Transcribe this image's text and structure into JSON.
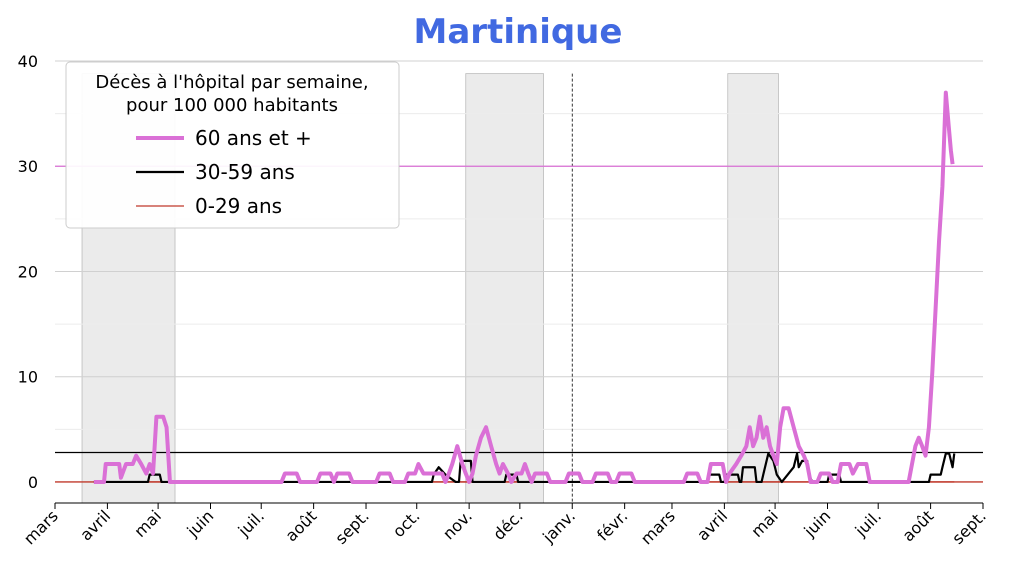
{
  "chart_data": {
    "type": "line",
    "title": "Martinique",
    "title_color": "#4169E1",
    "ylim": [
      -2,
      40
    ],
    "yticks": [
      0,
      10,
      20,
      30,
      40
    ],
    "grid": true,
    "x_months": [
      "mars",
      "avril",
      "mai",
      "juin",
      "juil.",
      "août",
      "sept.",
      "oct.",
      "nov.",
      "déc.",
      "janv.",
      "févr.",
      "mars",
      "avril",
      "mai",
      "juin",
      "juil.",
      "août",
      "sept."
    ],
    "x_range": [
      "2020-03-01",
      "2021-09-01"
    ],
    "year_boundary": "2021-01-01",
    "lockdowns": [
      [
        "2020-03-17",
        "2020-05-11"
      ],
      [
        "2020-10-30",
        "2020-12-15"
      ],
      [
        "2021-04-03",
        "2021-05-03"
      ]
    ],
    "reference_lines": [
      {
        "value": 30,
        "color": "#DA70D6"
      },
      {
        "value": 2.8,
        "color": "#000000"
      },
      {
        "value": 0,
        "color": "#c0392b"
      }
    ],
    "legend": {
      "title_line1": "Décès à l'hôpital par semaine,",
      "title_line2": "pour 100 000 habitants",
      "placement": "top-left"
    },
    "series": [
      {
        "name": "60 ans et +",
        "color": "#DA70D6",
        "points": [
          [
            "2020-03-24",
            0
          ],
          [
            "2020-03-30",
            0
          ],
          [
            "2020-03-31",
            1.7
          ],
          [
            "2020-04-08",
            1.7
          ],
          [
            "2020-04-09",
            0.4
          ],
          [
            "2020-04-12",
            1.7
          ],
          [
            "2020-04-16",
            1.7
          ],
          [
            "2020-04-18",
            2.5
          ],
          [
            "2020-04-21",
            1.7
          ],
          [
            "2020-04-24",
            0.8
          ],
          [
            "2020-04-26",
            1.7
          ],
          [
            "2020-04-28",
            0.8
          ],
          [
            "2020-04-30",
            6.2
          ],
          [
            "2020-05-04",
            6.2
          ],
          [
            "2020-05-06",
            5.2
          ],
          [
            "2020-05-08",
            0
          ],
          [
            "2020-07-13",
            0
          ],
          [
            "2020-07-15",
            0.8
          ],
          [
            "2020-07-22",
            0.8
          ],
          [
            "2020-07-24",
            0
          ],
          [
            "2020-08-03",
            0
          ],
          [
            "2020-08-05",
            0.8
          ],
          [
            "2020-08-11",
            0.8
          ],
          [
            "2020-08-13",
            0
          ],
          [
            "2020-08-15",
            0.8
          ],
          [
            "2020-08-22",
            0.8
          ],
          [
            "2020-08-24",
            0
          ],
          [
            "2020-09-07",
            0
          ],
          [
            "2020-09-09",
            0.8
          ],
          [
            "2020-09-15",
            0.8
          ],
          [
            "2020-09-17",
            0
          ],
          [
            "2020-09-24",
            0
          ],
          [
            "2020-09-26",
            0.8
          ],
          [
            "2020-09-30",
            0.8
          ],
          [
            "2020-10-02",
            1.7
          ],
          [
            "2020-10-05",
            0.8
          ],
          [
            "2020-10-16",
            0.8
          ],
          [
            "2020-10-18",
            0
          ],
          [
            "2020-10-20",
            0.8
          ],
          [
            "2020-10-22",
            1.7
          ],
          [
            "2020-10-25",
            3.4
          ],
          [
            "2020-10-28",
            1.7
          ],
          [
            "2020-10-30",
            0.8
          ],
          [
            "2020-11-01",
            0
          ],
          [
            "2020-11-03",
            0.8
          ],
          [
            "2020-11-05",
            2.5
          ],
          [
            "2020-11-08",
            4.2
          ],
          [
            "2020-11-11",
            5.2
          ],
          [
            "2020-11-14",
            3.4
          ],
          [
            "2020-11-17",
            1.7
          ],
          [
            "2020-11-19",
            0.8
          ],
          [
            "2020-11-21",
            1.7
          ],
          [
            "2020-11-24",
            0.8
          ],
          [
            "2020-11-26",
            0
          ],
          [
            "2020-11-29",
            0.8
          ],
          [
            "2020-12-02",
            0.8
          ],
          [
            "2020-12-04",
            1.7
          ],
          [
            "2020-12-06",
            0.8
          ],
          [
            "2020-12-08",
            0
          ],
          [
            "2020-12-10",
            0.8
          ],
          [
            "2020-12-17",
            0.8
          ],
          [
            "2020-12-19",
            0
          ],
          [
            "2020-12-28",
            0
          ],
          [
            "2020-12-30",
            0.8
          ],
          [
            "2021-01-05",
            0.8
          ],
          [
            "2021-01-07",
            0
          ],
          [
            "2021-01-13",
            0
          ],
          [
            "2021-01-15",
            0.8
          ],
          [
            "2021-01-22",
            0.8
          ],
          [
            "2021-01-24",
            0
          ],
          [
            "2021-01-27",
            0
          ],
          [
            "2021-01-29",
            0.8
          ],
          [
            "2021-02-05",
            0.8
          ],
          [
            "2021-02-07",
            0
          ],
          [
            "2021-03-08",
            0
          ],
          [
            "2021-03-10",
            0.8
          ],
          [
            "2021-03-16",
            0.8
          ],
          [
            "2021-03-18",
            0
          ],
          [
            "2021-03-22",
            0
          ],
          [
            "2021-03-24",
            1.7
          ],
          [
            "2021-03-31",
            1.7
          ],
          [
            "2021-04-02",
            0
          ],
          [
            "2021-04-04",
            0.8
          ],
          [
            "2021-04-08",
            1.7
          ],
          [
            "2021-04-11",
            2.5
          ],
          [
            "2021-04-14",
            3.4
          ],
          [
            "2021-04-16",
            5.2
          ],
          [
            "2021-04-18",
            3.4
          ],
          [
            "2021-04-20",
            4.2
          ],
          [
            "2021-04-22",
            6.2
          ],
          [
            "2021-04-24",
            4.2
          ],
          [
            "2021-04-26",
            5.2
          ],
          [
            "2021-04-28",
            3.4
          ],
          [
            "2021-04-30",
            2.5
          ],
          [
            "2021-05-02",
            1.7
          ],
          [
            "2021-05-04",
            5.2
          ],
          [
            "2021-05-06",
            7.0
          ],
          [
            "2021-05-09",
            7.0
          ],
          [
            "2021-05-12",
            5.2
          ],
          [
            "2021-05-15",
            3.4
          ],
          [
            "2021-05-18",
            2.5
          ],
          [
            "2021-05-20",
            1.7
          ],
          [
            "2021-05-22",
            0
          ],
          [
            "2021-05-26",
            0
          ],
          [
            "2021-05-28",
            0.8
          ],
          [
            "2021-06-02",
            0.8
          ],
          [
            "2021-06-04",
            0
          ],
          [
            "2021-06-07",
            0
          ],
          [
            "2021-06-09",
            1.7
          ],
          [
            "2021-06-14",
            1.7
          ],
          [
            "2021-06-16",
            0.8
          ],
          [
            "2021-06-19",
            1.7
          ],
          [
            "2021-06-24",
            1.7
          ],
          [
            "2021-06-26",
            0
          ],
          [
            "2021-07-19",
            0
          ],
          [
            "2021-07-21",
            1.7
          ],
          [
            "2021-07-23",
            3.4
          ],
          [
            "2021-07-25",
            4.2
          ],
          [
            "2021-07-27",
            3.4
          ],
          [
            "2021-07-29",
            2.5
          ],
          [
            "2021-07-31",
            5.2
          ],
          [
            "2021-08-02",
            10.4
          ],
          [
            "2021-08-04",
            16.6
          ],
          [
            "2021-08-06",
            22.9
          ],
          [
            "2021-08-08",
            28.1
          ],
          [
            "2021-08-10",
            37.0
          ],
          [
            "2021-08-12",
            33.3
          ],
          [
            "2021-08-13",
            31.5
          ],
          [
            "2021-08-14",
            30.2
          ]
        ]
      },
      {
        "name": "30-59 ans",
        "color": "#000000",
        "points": [
          [
            "2020-03-24",
            0
          ],
          [
            "2020-04-25",
            0
          ],
          [
            "2020-04-26",
            0.7
          ],
          [
            "2020-05-02",
            0.7
          ],
          [
            "2020-05-03",
            0
          ],
          [
            "2020-10-10",
            0
          ],
          [
            "2020-10-11",
            0.7
          ],
          [
            "2020-10-14",
            1.4
          ],
          [
            "2020-10-18",
            0.7
          ],
          [
            "2020-10-24",
            0
          ],
          [
            "2020-10-26",
            0
          ],
          [
            "2020-10-27",
            2.0
          ],
          [
            "2020-11-02",
            2.0
          ],
          [
            "2020-11-03",
            0
          ],
          [
            "2020-11-22",
            0
          ],
          [
            "2020-11-23",
            0.7
          ],
          [
            "2020-11-29",
            0.7
          ],
          [
            "2020-11-30",
            0
          ],
          [
            "2021-03-22",
            0
          ],
          [
            "2021-03-23",
            0.7
          ],
          [
            "2021-03-29",
            0.7
          ],
          [
            "2021-03-30",
            0
          ],
          [
            "2021-04-01",
            0
          ],
          [
            "2021-04-02",
            0.7
          ],
          [
            "2021-04-09",
            0.7
          ],
          [
            "2021-04-10",
            0
          ],
          [
            "2021-04-11",
            0
          ],
          [
            "2021-04-12",
            1.4
          ],
          [
            "2021-04-19",
            1.4
          ],
          [
            "2021-04-20",
            0
          ],
          [
            "2021-04-23",
            0
          ],
          [
            "2021-04-24",
            0.7
          ],
          [
            "2021-04-27",
            2.7
          ],
          [
            "2021-04-30",
            2.0
          ],
          [
            "2021-05-02",
            0.7
          ],
          [
            "2021-05-05",
            0
          ],
          [
            "2021-05-12",
            1.4
          ],
          [
            "2021-05-14",
            2.7
          ],
          [
            "2021-05-15",
            1.4
          ],
          [
            "2021-05-17",
            2.0
          ],
          [
            "2021-05-20",
            2.0
          ],
          [
            "2021-05-21",
            0.7
          ],
          [
            "2021-05-23",
            0
          ],
          [
            "2021-06-01",
            0
          ],
          [
            "2021-06-02",
            0.7
          ],
          [
            "2021-06-08",
            0.7
          ],
          [
            "2021-06-09",
            0
          ],
          [
            "2021-07-31",
            0
          ],
          [
            "2021-08-01",
            0.7
          ],
          [
            "2021-08-07",
            0.7
          ],
          [
            "2021-08-08",
            1.4
          ],
          [
            "2021-08-10",
            2.7
          ],
          [
            "2021-08-12",
            2.7
          ],
          [
            "2021-08-14",
            1.4
          ],
          [
            "2021-08-15",
            2.7
          ]
        ]
      },
      {
        "name": "0-29 ans",
        "color": "#c0392b",
        "points": [
          [
            "2020-03-24",
            0
          ],
          [
            "2021-08-15",
            0
          ]
        ]
      }
    ]
  }
}
